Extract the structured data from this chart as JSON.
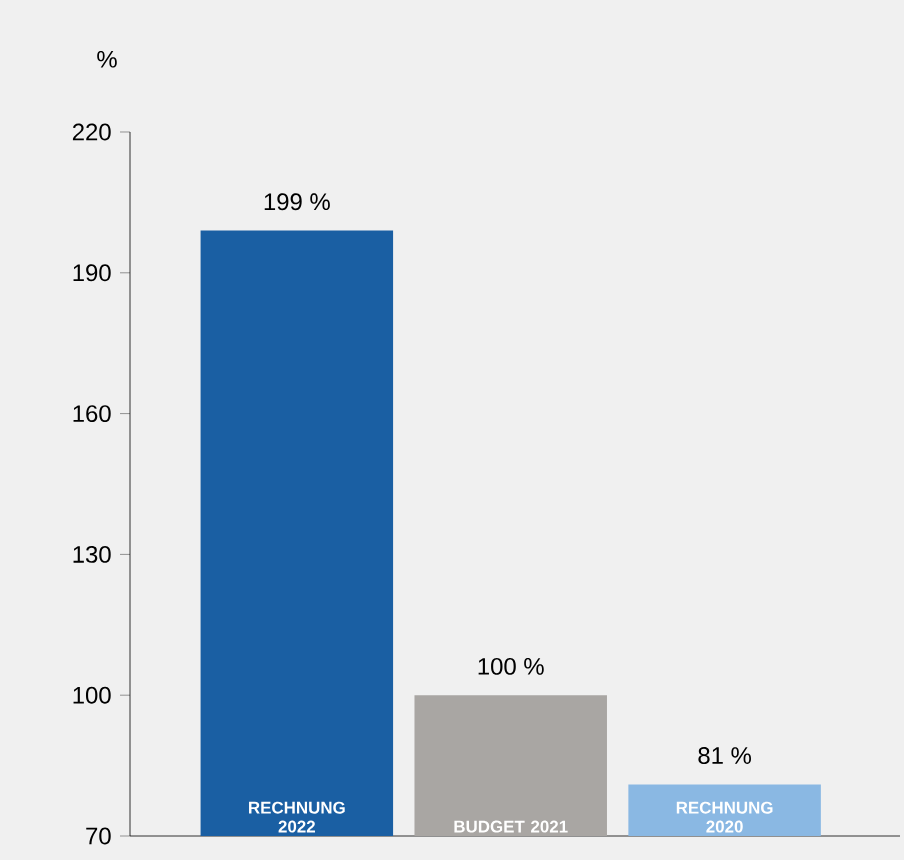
{
  "chart_data": {
    "type": "bar",
    "ylabel": "%",
    "categories": [
      "RECHNUNG 2022",
      "BUDGET 2021",
      "RECHNUNG 2020"
    ],
    "values": [
      199,
      100,
      81
    ],
    "value_labels": [
      "199 %",
      "100 %",
      "81 %"
    ],
    "colors": [
      "#1a5fa3",
      "#a9a6a3",
      "#8ab8e3"
    ],
    "ylim": [
      70,
      220
    ],
    "yticks": [
      70,
      100,
      130,
      160,
      190,
      220
    ]
  }
}
